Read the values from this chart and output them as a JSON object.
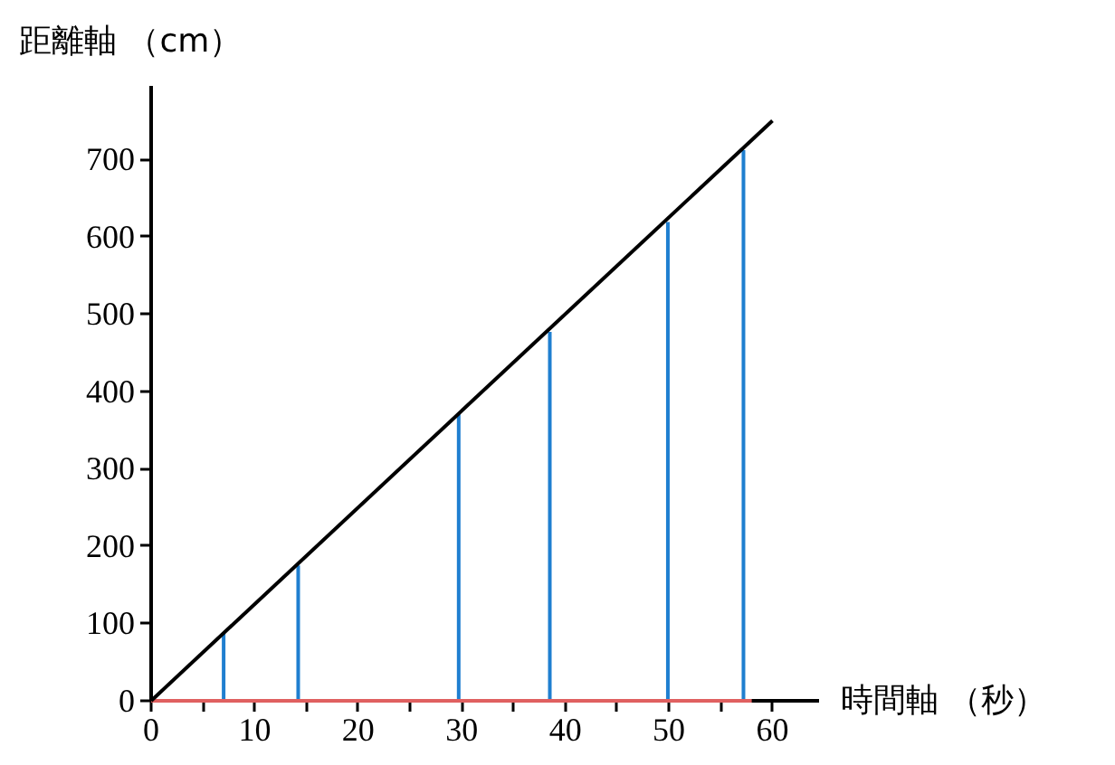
{
  "chart_data": {
    "type": "line",
    "xlabel": "時間軸 （秒）",
    "ylabel": "距離軸 （cm）",
    "xlim": [
      0,
      64.5
    ],
    "ylim": [
      0,
      795
    ],
    "xticks": [
      0,
      {
        "value": 5,
        "label": null
      },
      10,
      {
        "value": 15,
        "label": null
      },
      20,
      {
        "value": 25,
        "label": null
      },
      30,
      {
        "value": 35,
        "label": null
      },
      40,
      {
        "value": 45,
        "label": null
      },
      50,
      {
        "value": 55,
        "label": null
      },
      60
    ],
    "yticks": [
      0,
      100,
      200,
      300,
      400,
      500,
      600,
      700
    ],
    "grid": false,
    "series": [
      {
        "type": "bar",
        "color": "#1f7fd0",
        "x": [
          7,
          14.2,
          29.7,
          38.5,
          49.9,
          57.2
        ],
        "values": [
          88,
          175,
          370,
          477,
          619,
          712
        ]
      },
      {
        "type": "line",
        "color": "#e06060",
        "x": [
          0,
          58
        ],
        "values": [
          0,
          0
        ]
      },
      {
        "color": "#000000",
        "x": [
          0,
          60
        ],
        "values": [
          0,
          750
        ]
      }
    ]
  }
}
